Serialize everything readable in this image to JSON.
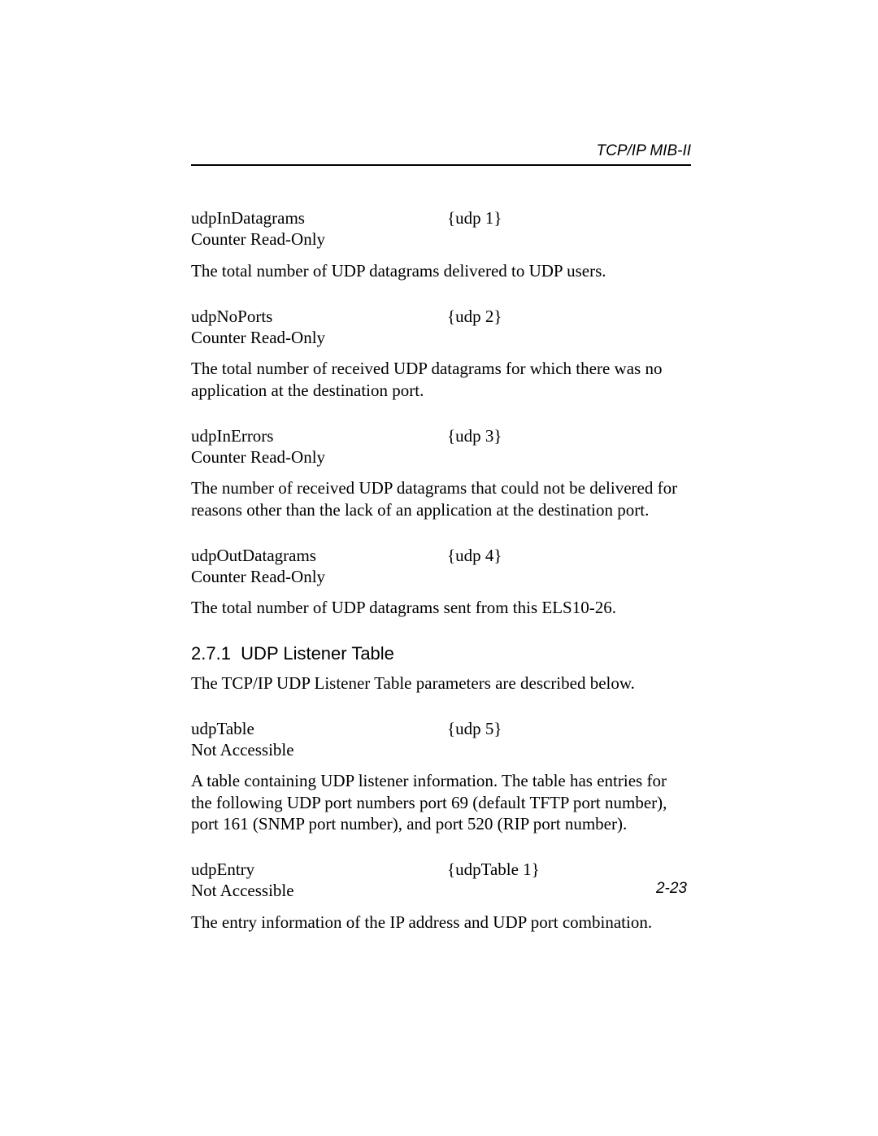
{
  "header": {
    "title": "TCP/IP MIB-II"
  },
  "entries": [
    {
      "name": "udpInDatagrams",
      "oid": "{udp 1}",
      "access": "Counter Read-Only",
      "description": "The total number of UDP datagrams delivered to UDP users."
    },
    {
      "name": "udpNoPorts",
      "oid": "{udp 2}",
      "access": "Counter Read-Only",
      "description": "The total number of received UDP datagrams for which there was no application at the destination port."
    },
    {
      "name": "udpInErrors",
      "oid": "{udp 3}",
      "access": "Counter Read-Only",
      "description": "The number of received UDP datagrams that could not be delivered for reasons other than the lack of an application at the destination port."
    },
    {
      "name": "udpOutDatagrams",
      "oid": "{udp 4}",
      "access": "Counter Read-Only",
      "description": "The total number of UDP datagrams sent from this ELS10-26."
    }
  ],
  "section": {
    "number": "2.7.1",
    "title": "UDP Listener Table",
    "intro": "The TCP/IP UDP Listener Table parameters are described below."
  },
  "subentries": [
    {
      "name": "udpTable",
      "oid": "{udp 5}",
      "access": "Not Accessible",
      "description": "A table containing UDP listener information. The table has entries for the following UDP port numbers port 69 (default TFTP port number), port 161 (SNMP port number), and port 520 (RIP port number)."
    },
    {
      "name": "udpEntry",
      "oid": "{udpTable 1}",
      "access": "Not Accessible",
      "description": "The entry information of the IP address and UDP port combination."
    }
  ],
  "footer": {
    "page_number": "2-23"
  }
}
